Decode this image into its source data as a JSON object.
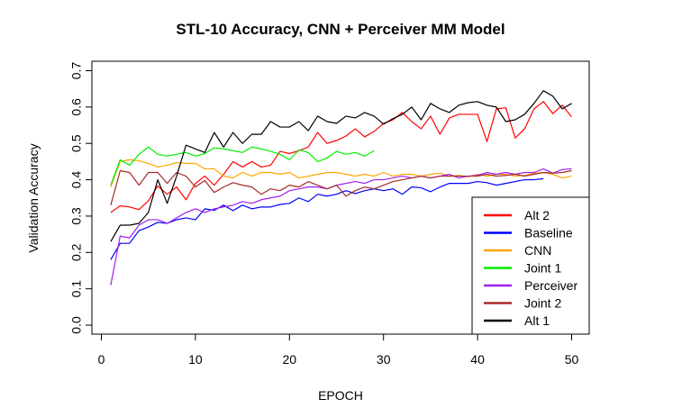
{
  "chart_data": {
    "type": "line",
    "title": "STL-10 Accuracy, CNN + Perceiver MM Model",
    "xlabel": "EPOCH",
    "ylabel": "Validation Accuracy",
    "xlim": [
      1,
      50
    ],
    "ylim": [
      0,
      0.7
    ],
    "xticks": [
      0,
      10,
      20,
      30,
      40,
      50
    ],
    "yticks": [
      0.0,
      0.1,
      0.2,
      0.3,
      0.4,
      0.5,
      0.6,
      0.7
    ],
    "ytick_labels": [
      "0.0",
      "0.1",
      "0.2",
      "0.3",
      "0.4",
      "0.5",
      "0.6",
      "0.7"
    ],
    "grid": false,
    "legend_position": "bottom-right",
    "series": [
      {
        "name": "Alt 2",
        "color": "#ff0000",
        "x": [
          1,
          2,
          3,
          4,
          5,
          6,
          7,
          8,
          9,
          10,
          11,
          12,
          13,
          14,
          15,
          16,
          17,
          18,
          19,
          20,
          21,
          22,
          23,
          24,
          25,
          26,
          27,
          28,
          29,
          30,
          31,
          32,
          33,
          34,
          35,
          36,
          37,
          38,
          39,
          40,
          41,
          42,
          43,
          44,
          45,
          46,
          47,
          48,
          49,
          50
        ],
        "values": [
          0.31,
          0.328,
          0.325,
          0.318,
          0.342,
          0.383,
          0.36,
          0.38,
          0.345,
          0.39,
          0.41,
          0.385,
          0.415,
          0.45,
          0.435,
          0.45,
          0.435,
          0.44,
          0.478,
          0.472,
          0.48,
          0.49,
          0.53,
          0.5,
          0.508,
          0.52,
          0.54,
          0.518,
          0.533,
          0.555,
          0.565,
          0.585,
          0.56,
          0.54,
          0.575,
          0.525,
          0.57,
          0.58,
          0.58,
          0.58,
          0.505,
          0.595,
          0.598,
          0.515,
          0.54,
          0.595,
          0.615,
          0.582,
          0.605,
          0.573
        ]
      },
      {
        "name": "Baseline",
        "color": "#0000ff",
        "x": [
          1,
          2,
          3,
          4,
          5,
          6,
          7,
          8,
          9,
          10,
          11,
          12,
          13,
          14,
          15,
          16,
          17,
          18,
          19,
          20,
          21,
          22,
          23,
          24,
          25,
          26,
          27,
          28,
          29,
          30,
          31,
          32,
          33,
          34,
          35,
          36,
          37,
          38,
          39,
          40,
          41,
          42,
          43,
          44,
          45,
          46,
          47
        ],
        "values": [
          0.18,
          0.225,
          0.225,
          0.26,
          0.27,
          0.283,
          0.28,
          0.29,
          0.295,
          0.29,
          0.32,
          0.316,
          0.33,
          0.315,
          0.33,
          0.32,
          0.325,
          0.325,
          0.332,
          0.335,
          0.35,
          0.34,
          0.36,
          0.355,
          0.36,
          0.37,
          0.362,
          0.37,
          0.375,
          0.37,
          0.375,
          0.36,
          0.38,
          0.378,
          0.367,
          0.38,
          0.39,
          0.39,
          0.39,
          0.395,
          0.392,
          0.385,
          0.39,
          0.395,
          0.4,
          0.4,
          0.403
        ]
      },
      {
        "name": "CNN",
        "color": "#ffa500",
        "x": [
          1,
          2,
          3,
          4,
          5,
          6,
          7,
          8,
          9,
          10,
          11,
          12,
          13,
          14,
          15,
          16,
          17,
          18,
          19,
          20,
          21,
          22,
          23,
          24,
          25,
          26,
          27,
          28,
          29,
          30,
          31,
          32,
          33,
          34,
          35,
          36,
          37,
          38,
          39,
          40,
          41,
          42,
          43,
          44,
          45,
          46,
          47,
          48,
          49,
          50
        ],
        "values": [
          0.38,
          0.45,
          0.455,
          0.452,
          0.445,
          0.435,
          0.44,
          0.447,
          0.445,
          0.445,
          0.43,
          0.43,
          0.41,
          0.405,
          0.42,
          0.41,
          0.42,
          0.42,
          0.415,
          0.42,
          0.405,
          0.41,
          0.415,
          0.42,
          0.42,
          0.415,
          0.41,
          0.415,
          0.41,
          0.42,
          0.41,
          0.415,
          0.415,
          0.41,
          0.415,
          0.418,
          0.41,
          0.412,
          0.408,
          0.415,
          0.41,
          0.415,
          0.415,
          0.41,
          0.412,
          0.418,
          0.42,
          0.415,
          0.405,
          0.41
        ]
      },
      {
        "name": "Joint 1",
        "color": "#00ee00",
        "x": [
          1,
          2,
          3,
          4,
          5,
          6,
          7,
          8,
          9,
          10,
          11,
          12,
          13,
          14,
          15,
          16,
          17,
          18,
          19,
          20,
          21,
          22,
          23,
          24,
          25,
          26,
          27,
          28,
          29
        ],
        "values": [
          0.385,
          0.455,
          0.44,
          0.47,
          0.49,
          0.47,
          0.465,
          0.47,
          0.475,
          0.465,
          0.472,
          0.488,
          0.485,
          0.48,
          0.475,
          0.49,
          0.485,
          0.478,
          0.47,
          0.455,
          0.482,
          0.475,
          0.45,
          0.46,
          0.478,
          0.47,
          0.475,
          0.465,
          0.48
        ]
      },
      {
        "name": "Perceiver",
        "color": "#a020f0",
        "x": [
          1,
          2,
          3,
          4,
          5,
          6,
          7,
          8,
          9,
          10,
          11,
          12,
          13,
          14,
          15,
          16,
          17,
          18,
          19,
          20,
          21,
          22,
          23,
          24,
          25,
          26,
          27,
          28,
          29,
          30,
          31,
          32,
          33,
          34,
          35,
          36,
          37,
          38,
          39,
          40,
          41,
          42,
          43,
          44,
          45,
          46,
          47,
          48,
          49,
          50
        ],
        "values": [
          0.11,
          0.245,
          0.24,
          0.275,
          0.29,
          0.29,
          0.28,
          0.295,
          0.31,
          0.32,
          0.31,
          0.32,
          0.325,
          0.33,
          0.34,
          0.335,
          0.345,
          0.35,
          0.355,
          0.37,
          0.375,
          0.38,
          0.38,
          0.375,
          0.385,
          0.39,
          0.395,
          0.39,
          0.4,
          0.4,
          0.405,
          0.41,
          0.405,
          0.41,
          0.405,
          0.41,
          0.415,
          0.405,
          0.41,
          0.412,
          0.42,
          0.415,
          0.42,
          0.415,
          0.42,
          0.42,
          0.43,
          0.418,
          0.428,
          0.43
        ]
      },
      {
        "name": "Joint 2",
        "color": "#a52a2a",
        "x": [
          1,
          2,
          3,
          4,
          5,
          6,
          7,
          8,
          9,
          10,
          11,
          12,
          13,
          14,
          15,
          16,
          17,
          18,
          19,
          20,
          21,
          22,
          23,
          24,
          25,
          26,
          27,
          28,
          29,
          30,
          31,
          32,
          33,
          34,
          35,
          36,
          37,
          38,
          39,
          40,
          41,
          42,
          43,
          44,
          45,
          46,
          47,
          48,
          49,
          50
        ],
        "values": [
          0.33,
          0.425,
          0.42,
          0.385,
          0.42,
          0.42,
          0.39,
          0.42,
          0.41,
          0.38,
          0.398,
          0.365,
          0.38,
          0.392,
          0.385,
          0.38,
          0.36,
          0.375,
          0.37,
          0.385,
          0.38,
          0.395,
          0.385,
          0.375,
          0.385,
          0.355,
          0.37,
          0.38,
          0.375,
          0.385,
          0.395,
          0.4,
          0.405,
          0.41,
          0.405,
          0.41,
          0.41,
          0.41,
          0.41,
          0.41,
          0.415,
          0.41,
          0.412,
          0.415,
          0.41,
          0.415,
          0.42,
          0.418,
          0.42,
          0.425
        ]
      },
      {
        "name": "Alt 1",
        "color": "#000000",
        "x": [
          1,
          2,
          3,
          4,
          5,
          6,
          7,
          8,
          9,
          10,
          11,
          12,
          13,
          14,
          15,
          16,
          17,
          18,
          19,
          20,
          21,
          22,
          23,
          24,
          25,
          26,
          27,
          28,
          29,
          30,
          31,
          32,
          33,
          34,
          35,
          36,
          37,
          38,
          39,
          40,
          41,
          42,
          43,
          44,
          45,
          46,
          47,
          48,
          49,
          50
        ],
        "values": [
          0.23,
          0.275,
          0.275,
          0.28,
          0.31,
          0.4,
          0.335,
          0.41,
          0.495,
          0.485,
          0.475,
          0.53,
          0.49,
          0.53,
          0.5,
          0.525,
          0.525,
          0.56,
          0.545,
          0.545,
          0.56,
          0.535,
          0.575,
          0.56,
          0.555,
          0.575,
          0.57,
          0.585,
          0.575,
          0.553,
          0.568,
          0.58,
          0.6,
          0.565,
          0.61,
          0.595,
          0.585,
          0.605,
          0.612,
          0.615,
          0.605,
          0.6,
          0.56,
          0.565,
          0.58,
          0.61,
          0.645,
          0.63,
          0.595,
          0.61
        ]
      }
    ]
  }
}
